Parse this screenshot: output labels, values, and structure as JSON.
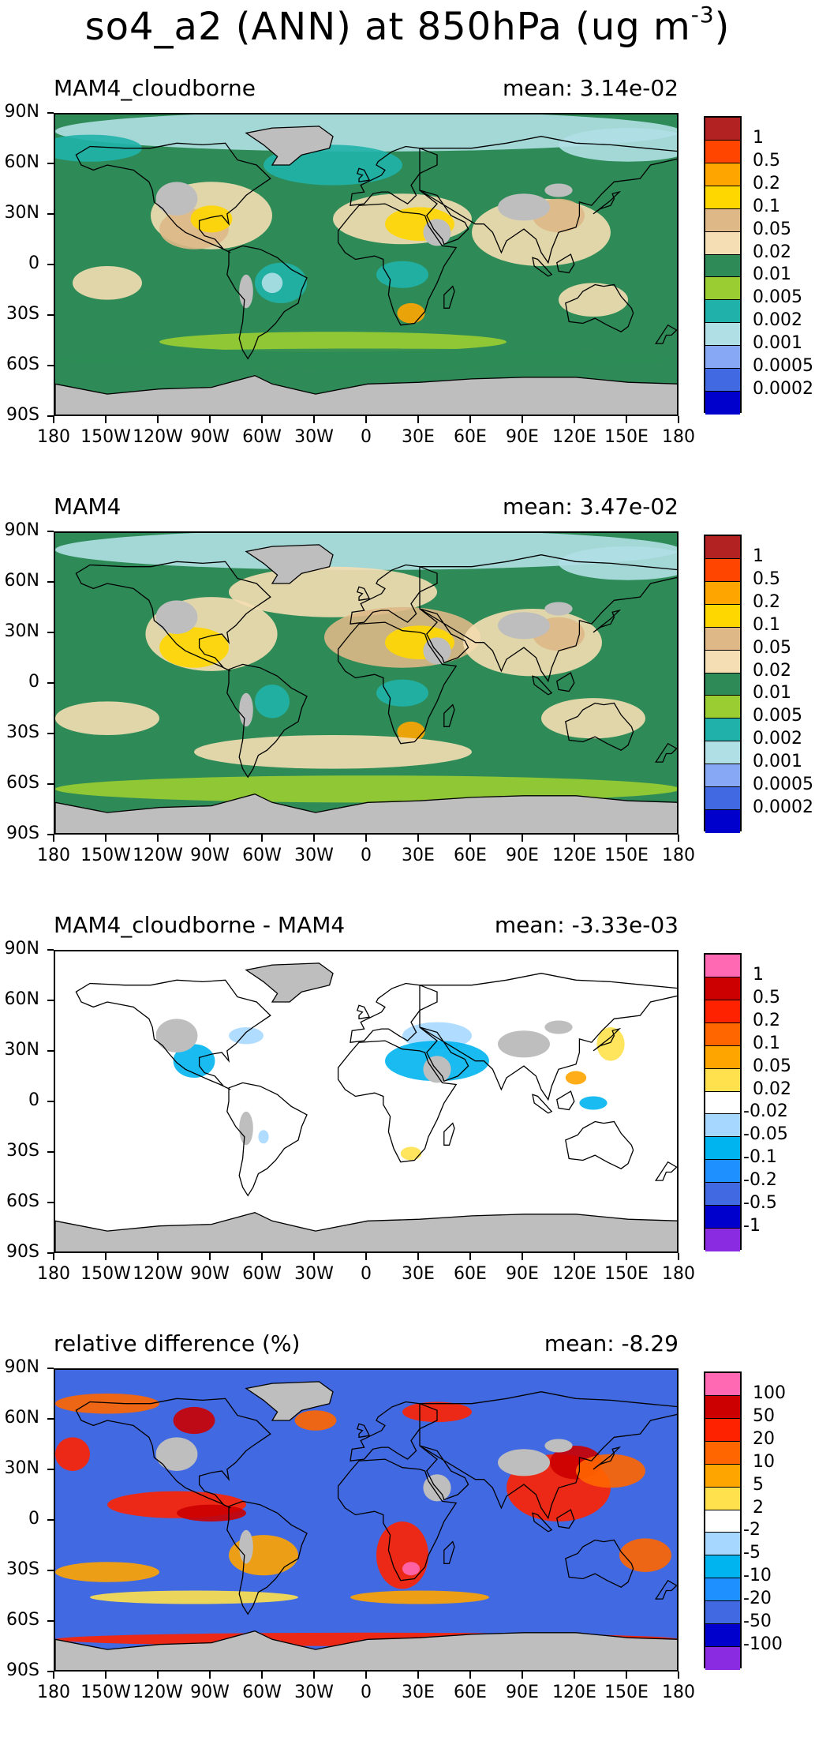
{
  "title": {
    "text": "so4_a2 (ANN) at 850hPa (ug m",
    "superscript": "-3",
    "close": ")"
  },
  "lat_labels": [
    "90N",
    "60N",
    "30N",
    "0",
    "30S",
    "60S",
    "90S"
  ],
  "lon_labels": [
    "180",
    "150W",
    "120W",
    "90W",
    "60W",
    "30W",
    "0",
    "30E",
    "60E",
    "90E",
    "120E",
    "150E",
    "180"
  ],
  "colors": {
    "missing_land": "#bebebe",
    "coast": "#000000"
  },
  "panels": [
    {
      "id": "mam4-cloudborne",
      "title": "MAM4_cloudborne",
      "mean": "mean: 3.14e-02",
      "background": "#2e8b57",
      "legend_labels": [
        "1",
        "0.5",
        "0.2",
        "0.1",
        "0.05",
        "0.02",
        "0.01",
        "0.005",
        "0.002",
        "0.001",
        "0.0005",
        "0.0002"
      ],
      "legend_colors": [
        "#b22222",
        "#ff4500",
        "#ffa500",
        "#ffd700",
        "#deb887",
        "#f5deb3",
        "#2e8b57",
        "#9acd32",
        "#20b2aa",
        "#b0e0e6",
        "#87a8f5",
        "#4169e1",
        "#0000cd"
      ]
    },
    {
      "id": "mam4",
      "title": "MAM4",
      "mean": "mean: 3.47e-02",
      "background": "#2e8b57",
      "legend_labels": [
        "1",
        "0.5",
        "0.2",
        "0.1",
        "0.05",
        "0.02",
        "0.01",
        "0.005",
        "0.002",
        "0.001",
        "0.0005",
        "0.0002"
      ],
      "legend_colors": [
        "#b22222",
        "#ff4500",
        "#ffa500",
        "#ffd700",
        "#deb887",
        "#f5deb3",
        "#2e8b57",
        "#9acd32",
        "#20b2aa",
        "#b0e0e6",
        "#87a8f5",
        "#4169e1",
        "#0000cd"
      ]
    },
    {
      "id": "difference",
      "title": "MAM4_cloudborne - MAM4",
      "mean": "mean: -3.33e-03",
      "background": "#ffffff",
      "legend_labels": [
        "1",
        "0.5",
        "0.2",
        "0.1",
        "0.05",
        "0.02",
        "-0.02",
        "-0.05",
        "-0.1",
        "-0.2",
        "-0.5",
        "-1"
      ],
      "legend_colors": [
        "#ff69b4",
        "#cc0000",
        "#ff2200",
        "#ff6600",
        "#ffa500",
        "#ffe14d",
        "#ffffff",
        "#a6d8ff",
        "#00b4f0",
        "#1e90ff",
        "#4169e1",
        "#0000cd",
        "#8a2be2"
      ]
    },
    {
      "id": "relative-difference",
      "title": "relative difference (%)",
      "mean": "mean: -8.29",
      "background": "#4169e1",
      "legend_labels": [
        "100",
        "50",
        "20",
        "10",
        "5",
        "2",
        "-2",
        "-5",
        "-10",
        "-20",
        "-50",
        "-100"
      ],
      "legend_colors": [
        "#ff69b4",
        "#cc0000",
        "#ff2200",
        "#ff6600",
        "#ffa500",
        "#ffe14d",
        "#ffffff",
        "#a6d8ff",
        "#00b4f0",
        "#1e90ff",
        "#4169e1",
        "#0000cd",
        "#8a2be2"
      ]
    }
  ]
}
